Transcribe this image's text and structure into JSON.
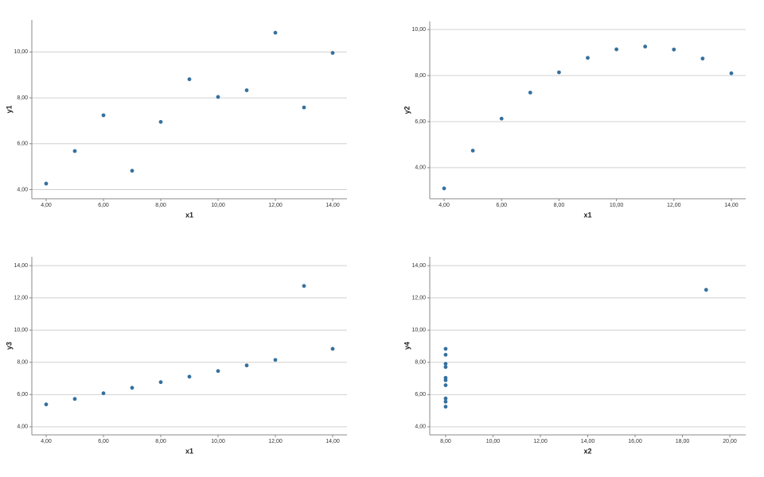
{
  "chart_data": [
    {
      "type": "scatter",
      "x_label": "x1",
      "y_label": "y1",
      "color": "#35709e",
      "grid": true,
      "x": [
        10,
        8,
        13,
        9,
        11,
        14,
        6,
        4,
        12,
        7,
        5
      ],
      "y": [
        8.04,
        6.95,
        7.58,
        8.81,
        8.33,
        9.96,
        7.24,
        4.26,
        10.84,
        4.82,
        5.68
      ],
      "xlim": [
        3.5,
        14.5
      ],
      "ylim": [
        3.6,
        11.4
      ],
      "xticks": [
        {
          "value": 4,
          "label": "4,00"
        },
        {
          "value": 6,
          "label": "6,00"
        },
        {
          "value": 8,
          "label": "8,00"
        },
        {
          "value": 10,
          "label": "10,00"
        },
        {
          "value": 12,
          "label": "12,00"
        },
        {
          "value": 14,
          "label": "14,00"
        }
      ],
      "yticks": [
        {
          "value": 4,
          "label": "4,00"
        },
        {
          "value": 6,
          "label": "6,00"
        },
        {
          "value": 8,
          "label": "8,00"
        },
        {
          "value": 10,
          "label": "10,00"
        }
      ]
    },
    {
      "type": "scatter",
      "x_label": "x1",
      "y_label": "y2",
      "color": "#35709e",
      "grid": true,
      "x": [
        10,
        8,
        13,
        9,
        11,
        14,
        6,
        4,
        12,
        7,
        5
      ],
      "y": [
        9.14,
        8.14,
        8.74,
        8.77,
        9.26,
        8.1,
        6.13,
        3.1,
        9.13,
        7.26,
        4.74
      ],
      "xlim": [
        3.5,
        14.5
      ],
      "ylim": [
        2.65,
        10.35
      ],
      "xticks": [
        {
          "value": 4,
          "label": "4,00"
        },
        {
          "value": 6,
          "label": "6,00"
        },
        {
          "value": 8,
          "label": "8,00"
        },
        {
          "value": 10,
          "label": "10,00"
        },
        {
          "value": 12,
          "label": "12,00"
        },
        {
          "value": 14,
          "label": "14,00"
        }
      ],
      "yticks": [
        {
          "value": 4,
          "label": "4,00"
        },
        {
          "value": 6,
          "label": "6,00"
        },
        {
          "value": 8,
          "label": "8,00"
        },
        {
          "value": 10,
          "label": "10,00"
        }
      ]
    },
    {
      "type": "scatter",
      "x_label": "x1",
      "y_label": "y3",
      "color": "#35709e",
      "grid": true,
      "x": [
        10,
        8,
        13,
        9,
        11,
        14,
        6,
        4,
        12,
        7,
        5
      ],
      "y": [
        7.46,
        6.77,
        12.74,
        7.11,
        7.81,
        8.84,
        6.08,
        5.39,
        8.15,
        6.42,
        5.73
      ],
      "xlim": [
        3.5,
        14.5
      ],
      "ylim": [
        3.5,
        14.55
      ],
      "xticks": [
        {
          "value": 4,
          "label": "4,00"
        },
        {
          "value": 6,
          "label": "6,00"
        },
        {
          "value": 8,
          "label": "8,00"
        },
        {
          "value": 10,
          "label": "10,00"
        },
        {
          "value": 12,
          "label": "12,00"
        },
        {
          "value": 14,
          "label": "14,00"
        }
      ],
      "yticks": [
        {
          "value": 4,
          "label": "4,00"
        },
        {
          "value": 6,
          "label": "6,00"
        },
        {
          "value": 8,
          "label": "8,00"
        },
        {
          "value": 10,
          "label": "10,00"
        },
        {
          "value": 12,
          "label": "12,00"
        },
        {
          "value": 14,
          "label": "14,00"
        }
      ]
    },
    {
      "type": "scatter",
      "x_label": "x2",
      "y_label": "y4",
      "color": "#35709e",
      "grid": true,
      "x": [
        8,
        8,
        8,
        8,
        8,
        8,
        8,
        19,
        8,
        8,
        8
      ],
      "y": [
        6.58,
        5.76,
        7.71,
        8.84,
        8.47,
        7.04,
        5.25,
        12.5,
        5.56,
        7.91,
        6.89
      ],
      "xlim": [
        7.33,
        20.67
      ],
      "ylim": [
        3.5,
        14.55
      ],
      "xticks": [
        {
          "value": 8,
          "label": "8,00"
        },
        {
          "value": 10,
          "label": "10,00"
        },
        {
          "value": 12,
          "label": "12,00"
        },
        {
          "value": 14,
          "label": "14,00"
        },
        {
          "value": 16,
          "label": "16,00"
        },
        {
          "value": 18,
          "label": "18,00"
        },
        {
          "value": 20,
          "label": "20,00"
        }
      ],
      "yticks": [
        {
          "value": 4,
          "label": "4,00"
        },
        {
          "value": 6,
          "label": "6,00"
        },
        {
          "value": 8,
          "label": "8,00"
        },
        {
          "value": 10,
          "label": "10,00"
        },
        {
          "value": 12,
          "label": "12,00"
        },
        {
          "value": 14,
          "label": "14,00"
        }
      ]
    }
  ]
}
